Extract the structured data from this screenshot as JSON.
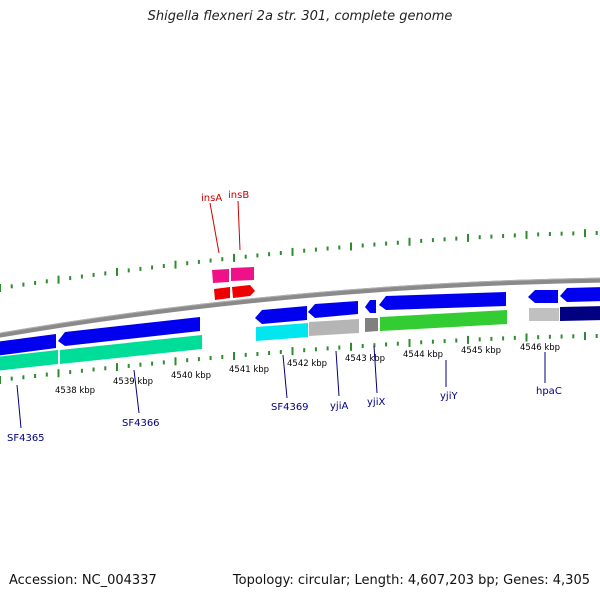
{
  "title": "Shigella flexneri 2a str. 301, complete genome",
  "footer": {
    "accession": "Accession: NC_004337",
    "summary": "Topology: circular; Length: 4,607,203 bp; Genes: 4,305"
  },
  "colors": {
    "backbone": "#808080",
    "tick": "#2e8b2e",
    "kbp_label": "#000000",
    "gene_label_forward": "#cc0000",
    "gene_label_reverse": "#000080"
  },
  "kbp_ticks": [
    "4538 kbp",
    "4539 kbp",
    "4540 kbp",
    "4541 kbp",
    "4542 kbp",
    "4543 kbp",
    "4544 kbp",
    "4545 kbp",
    "4546 kbp"
  ],
  "gene_labels": {
    "forward": [
      "insA",
      "insB"
    ],
    "reverse": [
      "SF4365",
      "SF4366",
      "SF4369",
      "yjiA",
      "yjiX",
      "yjiY",
      "hpaC"
    ]
  },
  "feature_colors": {
    "cds": "#0000ee",
    "insA_cds": "#ee0000",
    "insA_gene": "#ee1188",
    "SF4365_gene": "#00dd99",
    "SF4369_gene": "#00e5ee",
    "yjiA_gene": "#b5b5b5",
    "yjiX_gene": "#808080",
    "yjiY_gene": "#33cc33",
    "hpaC_gene": "#c0c0c0",
    "next_gene": "#000080"
  }
}
